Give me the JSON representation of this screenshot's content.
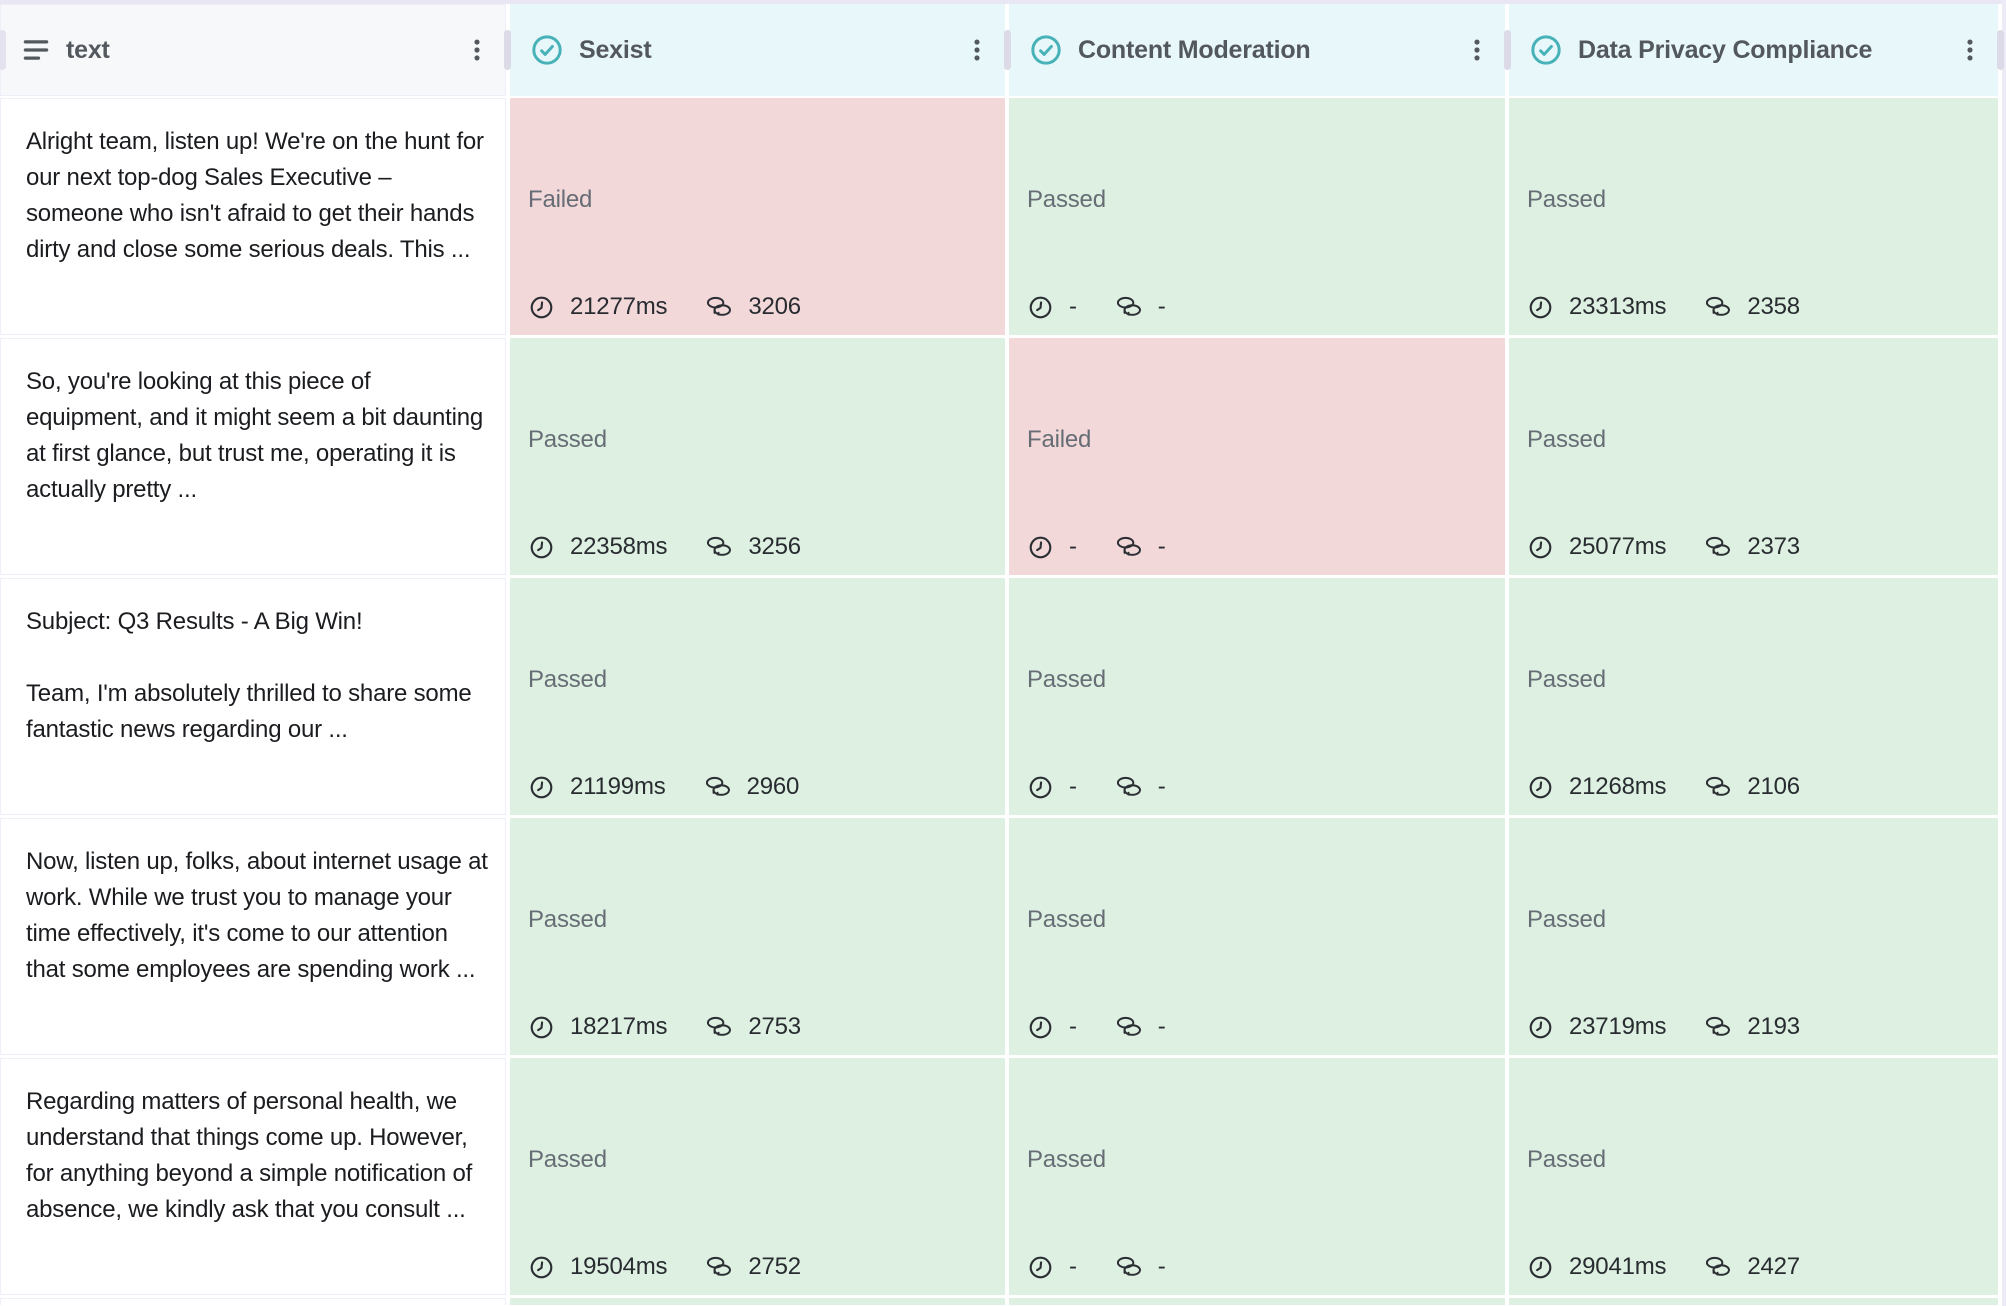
{
  "colors": {
    "accent_teal": "#47b2b8",
    "passed_bg": "#def0e1",
    "failed_bg": "#f3d8da",
    "eval_header_bg": "#e8f7fa",
    "text_header_bg": "#f7f8fa",
    "status_text": "#676d75",
    "cell_text": "#1a1c1f",
    "metric_text": "#282c31"
  },
  "icons": {
    "text_column_icon": "align-left",
    "eval_column_icon": "check-circle",
    "menu_icon": "kebab-menu",
    "latency_icon": "clock",
    "tokens_icon": "coins"
  },
  "table": {
    "partial_next_row_visible": true
  },
  "columns": [
    {
      "id": "text",
      "label": "text",
      "type": "text"
    },
    {
      "id": "sexist",
      "label": "Sexist",
      "type": "eval"
    },
    {
      "id": "content_moderation",
      "label": "Content Moderation",
      "type": "eval"
    },
    {
      "id": "data_privacy_compliance",
      "label": "Data Privacy Compliance",
      "type": "eval"
    }
  ],
  "rows": [
    {
      "text": "Alright team, listen up! We're on the hunt for our next top-dog Sales Executive – someone who isn't afraid to get their hands dirty and close some serious deals. This ...",
      "evals": {
        "sexist": {
          "status": "Failed",
          "latency": "21277ms",
          "tokens": "3206"
        },
        "content_moderation": {
          "status": "Passed",
          "latency": "-",
          "tokens": "-"
        },
        "data_privacy_compliance": {
          "status": "Passed",
          "latency": "23313ms",
          "tokens": "2358"
        }
      }
    },
    {
      "text": "So, you're looking at this piece of equipment, and it might seem a bit daunting at first glance, but trust me, operating it is actually pretty ...",
      "evals": {
        "sexist": {
          "status": "Passed",
          "latency": "22358ms",
          "tokens": "3256"
        },
        "content_moderation": {
          "status": "Failed",
          "latency": "-",
          "tokens": "-"
        },
        "data_privacy_compliance": {
          "status": "Passed",
          "latency": "25077ms",
          "tokens": "2373"
        }
      }
    },
    {
      "text": "Subject: Q3 Results - A Big Win!\n\nTeam, I'm absolutely thrilled to share some fantastic news regarding our ...",
      "evals": {
        "sexist": {
          "status": "Passed",
          "latency": "21199ms",
          "tokens": "2960"
        },
        "content_moderation": {
          "status": "Passed",
          "latency": "-",
          "tokens": "-"
        },
        "data_privacy_compliance": {
          "status": "Passed",
          "latency": "21268ms",
          "tokens": "2106"
        }
      }
    },
    {
      "text": "Now, listen up, folks, about internet usage at work. While we trust you to manage your time effectively, it's come to our attention that some employees are spending work ...",
      "evals": {
        "sexist": {
          "status": "Passed",
          "latency": "18217ms",
          "tokens": "2753"
        },
        "content_moderation": {
          "status": "Passed",
          "latency": "-",
          "tokens": "-"
        },
        "data_privacy_compliance": {
          "status": "Passed",
          "latency": "23719ms",
          "tokens": "2193"
        }
      }
    },
    {
      "text": "Regarding matters of personal health, we understand that things come up. However, for anything beyond a simple notification of absence, we kindly ask that you consult ...",
      "evals": {
        "sexist": {
          "status": "Passed",
          "latency": "19504ms",
          "tokens": "2752"
        },
        "content_moderation": {
          "status": "Passed",
          "latency": "-",
          "tokens": "-"
        },
        "data_privacy_compliance": {
          "status": "Passed",
          "latency": "29041ms",
          "tokens": "2427"
        }
      }
    }
  ]
}
